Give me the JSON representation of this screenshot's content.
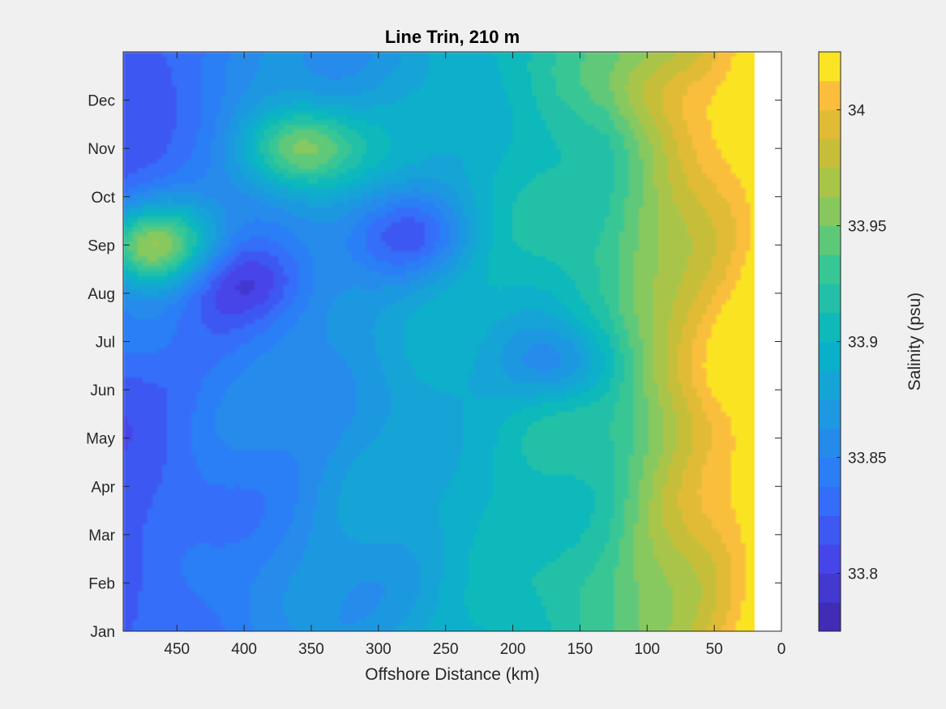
{
  "chart_data": {
    "type": "heatmap",
    "subtype": "filled-contour",
    "title": "Line Trin, 210 m",
    "xlabel": "Offshore Distance (km)",
    "ylabel": "",
    "x_axis": {
      "reversed": true,
      "xlim": [
        0,
        490
      ],
      "ticks": [
        450,
        400,
        350,
        300,
        250,
        200,
        150,
        100,
        50,
        0
      ],
      "data_extent": [
        20,
        490
      ]
    },
    "y_axis": {
      "ticks": [
        "Jan",
        "Feb",
        "Mar",
        "Apr",
        "May",
        "Jun",
        "Jul",
        "Aug",
        "Sep",
        "Oct",
        "Nov",
        "Dec"
      ],
      "ylim": [
        1,
        13
      ]
    },
    "colorbar": {
      "label": "Salinity (psu)",
      "range": [
        33.775,
        34.025
      ],
      "ticks": [
        33.8,
        33.85,
        33.9,
        33.95,
        34
      ],
      "levels": 20,
      "colormap": "parula"
    },
    "grid": false,
    "background": "#f0f0f0",
    "features": [
      {
        "desc": "fresh core",
        "x_km": 395,
        "month": 8.3,
        "value": 33.8
      },
      {
        "desc": "fresh filament",
        "x_km": 275,
        "month": 9.2,
        "value": 33.83
      },
      {
        "desc": "fresh patch",
        "x_km": 470,
        "month": 7.2,
        "value": 33.84
      },
      {
        "desc": "fresh patch",
        "x_km": 165,
        "month": 6.5,
        "value": 33.86
      },
      {
        "desc": "salty core",
        "x_km": 35,
        "month": 7.0,
        "value": 34.02
      },
      {
        "desc": "salty patch",
        "x_km": 70,
        "month": 6.2,
        "value": 34.0
      },
      {
        "desc": "salty patch",
        "x_km": 95,
        "month": 12.2,
        "value": 33.99
      },
      {
        "desc": "salty patch",
        "x_km": 45,
        "month": 11.2,
        "value": 34.0
      },
      {
        "desc": "salty patch",
        "x_km": 470,
        "month": 9.0,
        "value": 33.96
      },
      {
        "desc": "salty patch",
        "x_km": 360,
        "month": 11.0,
        "value": 33.96
      }
    ]
  }
}
